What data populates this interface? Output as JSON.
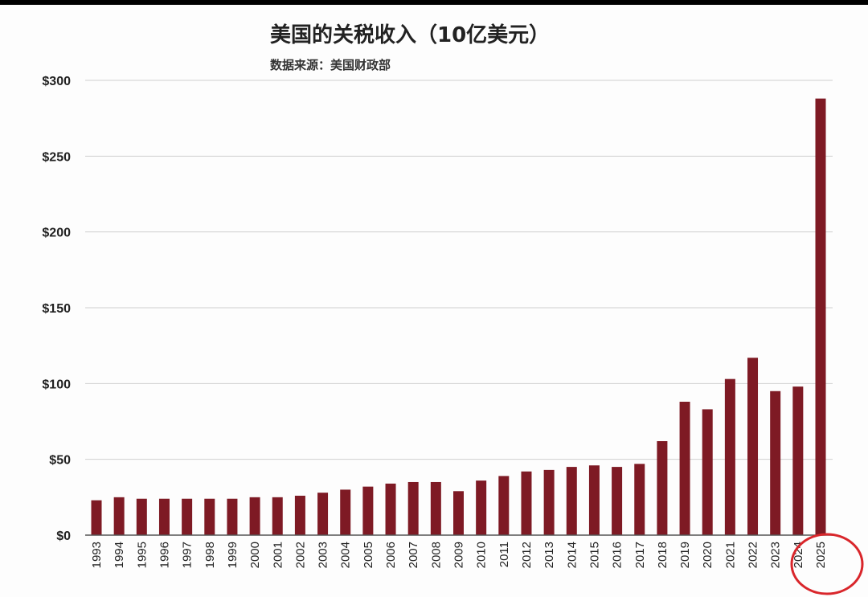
{
  "chart_data": {
    "type": "bar",
    "title": "美国的关税收入（10亿美元）",
    "subtitle": "数据来源：美国财政部",
    "categories": [
      "1993",
      "1994",
      "1995",
      "1996",
      "1997",
      "1998",
      "1999",
      "2000",
      "2001",
      "2002",
      "2003",
      "2004",
      "2005",
      "2006",
      "2007",
      "2008",
      "2009",
      "2010",
      "2011",
      "2012",
      "2013",
      "2014",
      "2015",
      "2016",
      "2017",
      "2018",
      "2019",
      "2020",
      "2021",
      "2022",
      "2023",
      "2024",
      "2025"
    ],
    "values": [
      23,
      25,
      24,
      24,
      24,
      24,
      24,
      25,
      25,
      26,
      28,
      30,
      32,
      34,
      35,
      35,
      29,
      36,
      39,
      42,
      43,
      45,
      46,
      45,
      47,
      62,
      88,
      83,
      103,
      117,
      95,
      98,
      288
    ],
    "ylim": [
      0,
      300
    ],
    "yticks": [
      "$0",
      "$50",
      "$100",
      "$150",
      "$200",
      "$250",
      "$300"
    ],
    "ytick_values": [
      0,
      50,
      100,
      150,
      200,
      250,
      300
    ],
    "grid": true,
    "bar_color": "#7e1a24",
    "highlight": {
      "category": "2025",
      "shape": "circle",
      "color": "#d9262b"
    }
  }
}
